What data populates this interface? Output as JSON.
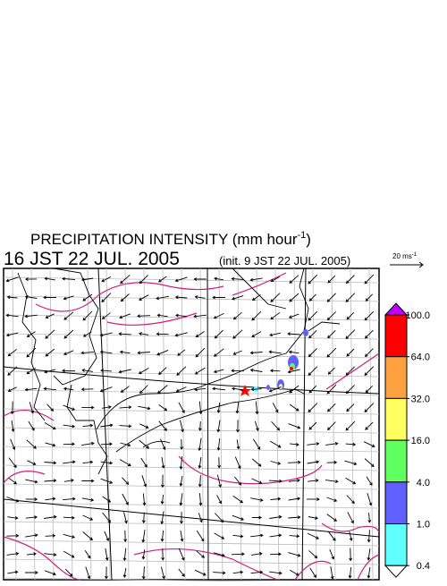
{
  "header": {
    "title": "PRECIPITATION INTENSITY (mm hour",
    "title_unit_exponent": "-1",
    "title_close": ")",
    "time": "16 JST 22 JUL. 2005",
    "init": "(init. 9 JST 22 JUL. 2005)"
  },
  "reference_vector": {
    "label": "20 ms",
    "exponent": "-1"
  },
  "colorbar": {
    "levels": [
      {
        "value": 100,
        "label": "100.0"
      },
      {
        "value": 64,
        "label": "64.0"
      },
      {
        "value": 32,
        "label": "32.0"
      },
      {
        "value": 16,
        "label": "16.0"
      },
      {
        "value": 4,
        "label": "4.0"
      },
      {
        "value": 1,
        "label": "1.0"
      },
      {
        "value": 0.4,
        "label": "0.4"
      }
    ],
    "colors": [
      "#ff0000",
      "#ffa040",
      "#ffff60",
      "#60ff60",
      "#6060ff",
      "#60ffff"
    ],
    "over_color": "#c000ff",
    "under_color": "#ffffff"
  }
}
